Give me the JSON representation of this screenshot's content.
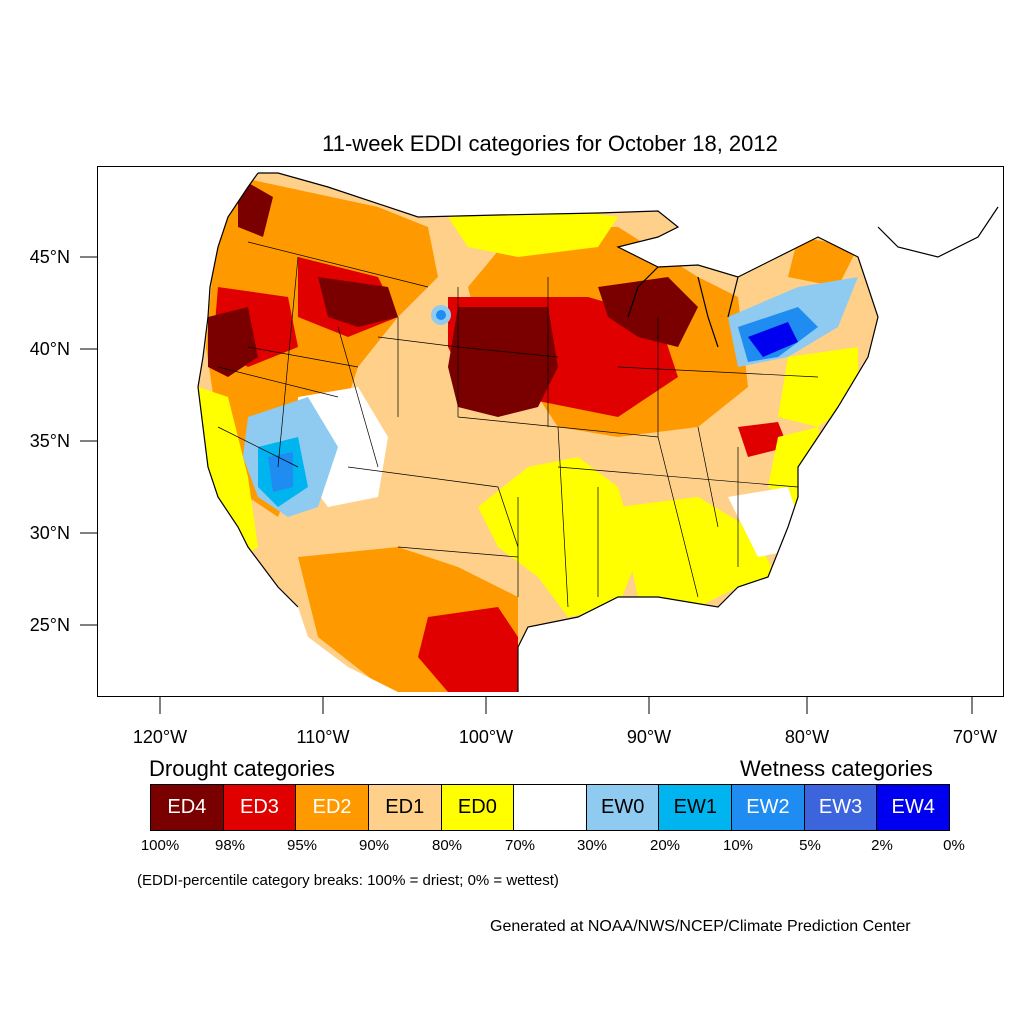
{
  "title": "11-week EDDI categories for October 18, 2012",
  "axes": {
    "lat_labels": [
      "45°N",
      "40°N",
      "35°N",
      "30°N",
      "25°N"
    ],
    "lon_labels": [
      "120°W",
      "110°W",
      "100°W",
      "90°W",
      "80°W",
      "70°W"
    ]
  },
  "legend": {
    "drought_title": "Drought categories",
    "wetness_title": "Wetness categories",
    "categories": [
      {
        "label": "ED4",
        "color": "#7a0000",
        "text_color": "#ffffff"
      },
      {
        "label": "ED3",
        "color": "#e00000",
        "text_color": "#ffffff"
      },
      {
        "label": "ED2",
        "color": "#ff9900",
        "text_color": "#ffffff"
      },
      {
        "label": "ED1",
        "color": "#ffd08a",
        "text_color": "#000000"
      },
      {
        "label": "ED0",
        "color": "#ffff00",
        "text_color": "#000000"
      },
      {
        "label": "",
        "color": "#ffffff",
        "text_color": "#000000"
      },
      {
        "label": "EW0",
        "color": "#8fcbf0",
        "text_color": "#000000"
      },
      {
        "label": "EW1",
        "color": "#00b4f0",
        "text_color": "#000000"
      },
      {
        "label": "EW2",
        "color": "#1e8cf0",
        "text_color": "#ffffff"
      },
      {
        "label": "EW3",
        "color": "#3c64dc",
        "text_color": "#ffffff"
      },
      {
        "label": "EW4",
        "color": "#0000f0",
        "text_color": "#ffffff"
      }
    ],
    "percent_breaks": [
      "100%",
      "98%",
      "95%",
      "90%",
      "80%",
      "70%",
      "30%",
      "20%",
      "10%",
      "5%",
      "2%",
      "0%"
    ],
    "breaks_note": "(EDDI-percentile category breaks: 100% = driest; 0% = wettest)"
  },
  "credit": "Generated at NOAA/NWS/NCEP/Climate Prediction Center"
}
